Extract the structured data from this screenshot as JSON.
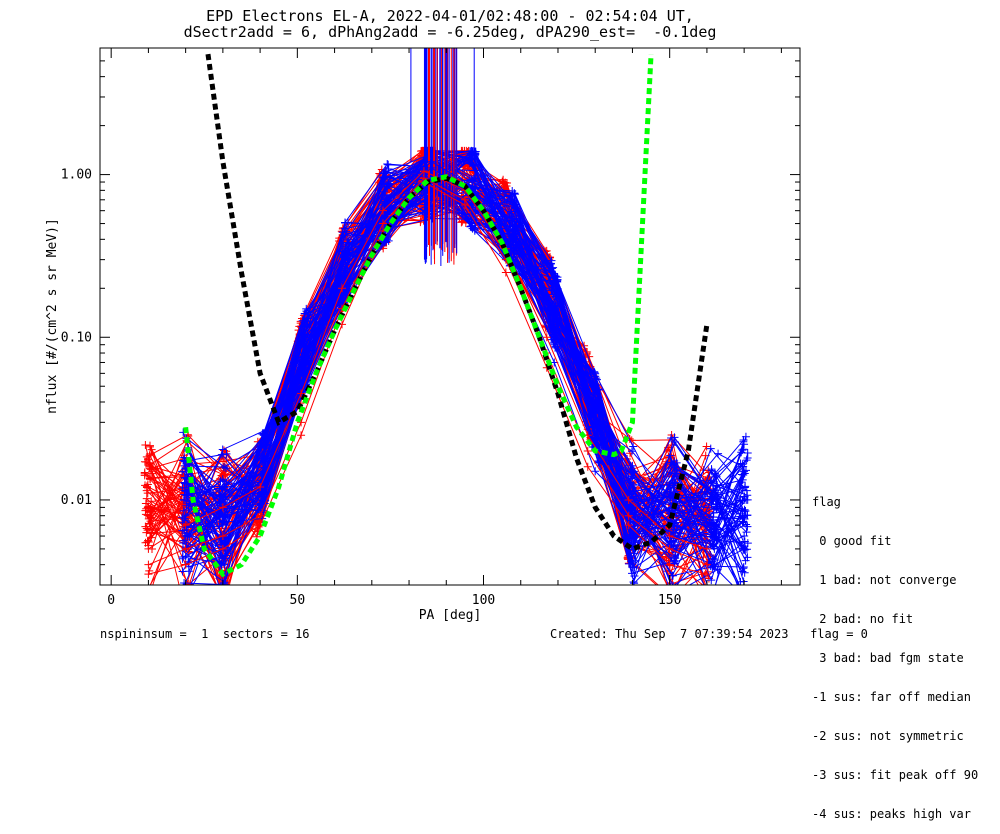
{
  "title_line1": "EPD Electrons EL-A, 2022-04-01/02:48:00 - 02:54:04 UT,",
  "title_line2": "dSectr2add = 6, dPhAng2add = -6.25deg, dPA290_est=  -0.1deg",
  "legend": {
    "title": "flag",
    "items": [
      " 0 good fit",
      " 1 bad: not converge",
      " 2 bad: no fit",
      " 3 bad: bad fgm state",
      "-1 sus: far off median",
      "-2 sus: not symmetric",
      "-3 sus: fit peak off 90",
      "-4 sus: peaks high var"
    ]
  },
  "footer_left": "nspininsum =  1  sectors = 16",
  "footer_right": "Created: Thu Sep  7 07:39:54 2023   flag = 0",
  "chart_data": {
    "type": "line",
    "xlabel": "PA [deg]",
    "ylabel": "nflux [#/(cm^2 s sr MeV)]",
    "xlim": [
      -3,
      185
    ],
    "ylim": [
      0.003,
      6
    ],
    "yscale": "log",
    "xticks": [
      0,
      50,
      100,
      150
    ],
    "xtick_labels": [
      "0",
      "50",
      "100",
      "150"
    ],
    "yticks": [
      0.01,
      0.1,
      1.0
    ],
    "ytick_labels": [
      "0.01",
      "0.10",
      "1.00"
    ],
    "colors": {
      "red": "#ff0000",
      "blue": "#0000ff",
      "green": "#00ff00",
      "black": "#000000"
    },
    "blue_pa_bins": [
      20,
      30,
      41,
      52,
      63,
      74,
      86,
      97,
      108,
      119,
      130,
      140,
      151,
      162,
      170
    ],
    "red_pa_bins": [
      10,
      20,
      30,
      40,
      51,
      62,
      73,
      84,
      95,
      106,
      117,
      128,
      139,
      150,
      160
    ],
    "series": [
      {
        "color": "#0000ff",
        "style": "line+plus",
        "x": [
          20,
          30,
          41,
          52,
          63,
          74,
          86,
          97,
          108,
          119,
          130,
          140,
          151,
          162,
          170
        ],
        "y": [
          0.0045,
          0.006,
          0.012,
          0.08,
          0.25,
          0.55,
          0.95,
          0.65,
          0.3,
          0.09,
          0.02,
          0.01,
          0.006,
          0.005,
          0.006
        ]
      },
      {
        "color": "#0000ff",
        "style": "line+plus",
        "x": [
          20,
          30,
          41,
          52,
          63,
          74,
          86,
          97,
          108,
          119,
          130,
          140,
          151,
          162,
          170
        ],
        "y": [
          0.006,
          0.008,
          0.02,
          0.1,
          0.3,
          0.65,
          1.1,
          0.75,
          0.35,
          0.1,
          0.025,
          0.012,
          0.007,
          0.006,
          0.008
        ]
      },
      {
        "color": "#0000ff",
        "style": "line+plus",
        "x": [
          20,
          30,
          41,
          52,
          63,
          74,
          86,
          97,
          108,
          119,
          130,
          140,
          151,
          162,
          170
        ],
        "y": [
          0.008,
          0.01,
          0.025,
          0.14,
          0.35,
          0.7,
          1.2,
          0.85,
          0.4,
          0.12,
          0.03,
          0.014,
          0.008,
          0.007,
          0.01
        ]
      },
      {
        "color": "#0000ff",
        "style": "line+plus",
        "x": [
          20,
          30,
          41,
          52,
          63,
          74,
          86,
          97,
          108,
          119,
          130,
          140,
          151,
          162,
          170
        ],
        "y": [
          0.005,
          0.007,
          0.015,
          0.06,
          0.2,
          0.5,
          0.9,
          0.6,
          0.25,
          0.07,
          0.015,
          0.009,
          0.005,
          0.004,
          0.005
        ]
      },
      {
        "color": "#ff0000",
        "style": "line+plus",
        "x": [
          10,
          20,
          30,
          40,
          51,
          62,
          73,
          84,
          95,
          106,
          117,
          128,
          139,
          150,
          160
        ],
        "y": [
          0.004,
          0.005,
          0.006,
          0.008,
          0.03,
          0.15,
          0.5,
          0.95,
          0.7,
          0.3,
          0.08,
          0.02,
          0.008,
          0.005,
          0.004
        ]
      },
      {
        "color": "#ff0000",
        "style": "line+plus",
        "x": [
          10,
          20,
          30,
          40,
          51,
          62,
          73,
          84,
          95,
          106,
          117,
          128,
          139,
          150,
          160
        ],
        "y": [
          0.005,
          0.007,
          0.009,
          0.012,
          0.045,
          0.2,
          0.6,
          1.05,
          0.8,
          0.35,
          0.1,
          0.025,
          0.01,
          0.006,
          0.005
        ]
      },
      {
        "color": "#ff0000",
        "style": "line+plus",
        "x": [
          10,
          20,
          30,
          40,
          51,
          62,
          73,
          84,
          95,
          106,
          117,
          128,
          139,
          150,
          160
        ],
        "y": [
          0.0035,
          0.004,
          0.005,
          0.007,
          0.025,
          0.12,
          0.45,
          0.9,
          0.65,
          0.25,
          0.065,
          0.016,
          0.007,
          0.004,
          0.0035
        ]
      },
      {
        "color": "#000000",
        "style": "dashed",
        "x": [
          26,
          30,
          35,
          40,
          45,
          50,
          55,
          60,
          65,
          70,
          75,
          80,
          85,
          90,
          95,
          100,
          105,
          110,
          115,
          120,
          125,
          130,
          135,
          140,
          145,
          150,
          155,
          160
        ],
        "y": [
          5.5,
          1.2,
          0.25,
          0.06,
          0.03,
          0.035,
          0.06,
          0.11,
          0.19,
          0.32,
          0.5,
          0.72,
          0.9,
          0.95,
          0.85,
          0.6,
          0.38,
          0.2,
          0.1,
          0.045,
          0.018,
          0.009,
          0.006,
          0.005,
          0.0055,
          0.007,
          0.02,
          0.12
        ]
      },
      {
        "color": "#00ff00",
        "style": "dashed",
        "x": [
          20,
          22,
          25,
          30,
          35,
          40,
          45,
          50,
          55,
          60,
          65,
          70,
          75,
          80,
          85,
          90,
          95,
          100,
          105,
          110,
          115,
          120,
          125,
          130,
          135,
          137,
          140,
          145
        ],
        "y": [
          0.028,
          0.01,
          0.005,
          0.0035,
          0.004,
          0.006,
          0.012,
          0.03,
          0.06,
          0.11,
          0.19,
          0.32,
          0.5,
          0.72,
          0.92,
          0.97,
          0.85,
          0.6,
          0.38,
          0.2,
          0.1,
          0.05,
          0.028,
          0.02,
          0.019,
          0.02,
          0.03,
          5.5
        ]
      }
    ]
  }
}
